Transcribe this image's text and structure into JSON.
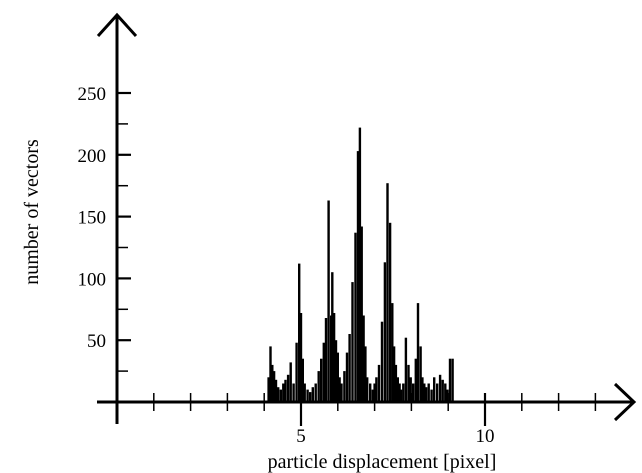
{
  "chart_data": {
    "type": "bar",
    "title": "",
    "xlabel": "particle displacement [pixel]",
    "ylabel": "number of vectors",
    "xlim": [
      0,
      14
    ],
    "ylim": [
      0,
      250
    ],
    "x_tick_labels": [
      {
        "value": 5,
        "label": "5"
      },
      {
        "value": 10,
        "label": "10"
      }
    ],
    "x_minor_ticks": [
      1,
      2,
      3,
      4,
      6,
      7,
      8,
      9,
      11,
      12,
      13
    ],
    "y_tick_labels": [
      {
        "value": 50,
        "label": "50"
      },
      {
        "value": 100,
        "label": "100"
      },
      {
        "value": 150,
        "label": "150"
      },
      {
        "value": 200,
        "label": "200"
      },
      {
        "value": 250,
        "label": "250"
      }
    ],
    "y_minor_ticks": [
      25,
      75,
      125,
      175,
      225
    ],
    "grid": false,
    "legend": "none",
    "bar_color": "#000000",
    "series": [
      {
        "x": [
          4.12,
          4.17,
          4.22,
          4.27,
          4.32,
          4.38,
          4.45,
          4.52,
          4.58,
          4.65,
          4.72,
          4.8,
          4.88,
          4.95,
          5.0,
          5.05,
          5.1,
          5.18,
          5.25,
          5.32,
          5.4,
          5.48,
          5.55,
          5.62,
          5.68,
          5.75,
          5.82,
          5.85,
          5.9,
          5.95,
          6.0,
          6.05,
          6.1,
          6.18,
          6.25,
          6.32,
          6.4,
          6.48,
          6.55,
          6.6,
          6.65,
          6.7,
          6.75,
          6.8,
          6.88,
          6.95,
          7.0,
          7.05,
          7.12,
          7.2,
          7.28,
          7.35,
          7.42,
          7.48,
          7.53,
          7.58,
          7.63,
          7.68,
          7.72,
          7.78,
          7.85,
          7.92,
          7.98,
          8.05,
          8.12,
          8.18,
          8.25,
          8.3,
          8.35,
          8.4,
          8.47,
          8.55,
          8.62,
          8.7,
          8.78,
          8.85,
          8.92,
          8.98,
          9.05,
          9.12
        ],
        "values": [
          20,
          45,
          30,
          25,
          18,
          12,
          10,
          15,
          18,
          22,
          32,
          15,
          48,
          112,
          72,
          35,
          15,
          10,
          8,
          12,
          15,
          25,
          35,
          48,
          68,
          163,
          70,
          105,
          72,
          50,
          40,
          20,
          15,
          25,
          40,
          55,
          97,
          137,
          203,
          222,
          142,
          70,
          45,
          20,
          15,
          10,
          15,
          20,
          30,
          65,
          113,
          177,
          145,
          80,
          45,
          30,
          20,
          15,
          10,
          15,
          52,
          30,
          20,
          15,
          35,
          80,
          45,
          20,
          15,
          12,
          15,
          10,
          20,
          15,
          22,
          18,
          15,
          10,
          35,
          35
        ]
      }
    ]
  }
}
